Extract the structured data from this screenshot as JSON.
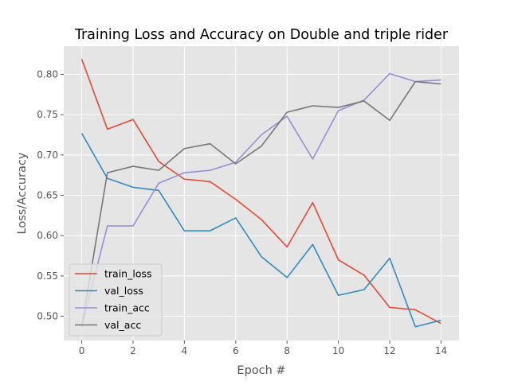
{
  "chart_data": {
    "type": "line",
    "title": "Training Loss and Accuracy on Double and triple rider",
    "xlabel": "Epoch #",
    "ylabel": "Loss/Accuracy",
    "x": [
      0,
      1,
      2,
      3,
      4,
      5,
      6,
      7,
      8,
      9,
      10,
      11,
      12,
      13,
      14
    ],
    "xlim": [
      -0.7,
      14.7
    ],
    "ylim": [
      0.47,
      0.835
    ],
    "xticks": [
      0,
      2,
      4,
      6,
      8,
      10,
      12,
      14
    ],
    "yticks": [
      0.5,
      0.55,
      0.6,
      0.65,
      0.7,
      0.75,
      0.8
    ],
    "xtick_labels": [
      "0",
      "2",
      "4",
      "6",
      "8",
      "10",
      "12",
      "14"
    ],
    "ytick_labels": [
      "0.50",
      "0.55",
      "0.60",
      "0.65",
      "0.70",
      "0.75",
      "0.80"
    ],
    "grid": true,
    "legend_position": "lower-left",
    "background_color": "#e5e5e5",
    "grid_color": "#ffffff",
    "series": [
      {
        "name": "train_loss",
        "color": "#e24a33",
        "values": [
          0.819,
          0.732,
          0.744,
          0.692,
          0.67,
          0.667,
          0.645,
          0.62,
          0.586,
          0.641,
          0.57,
          0.551,
          0.511,
          0.508,
          0.491
        ]
      },
      {
        "name": "val_loss",
        "color": "#348abd",
        "values": [
          0.727,
          0.671,
          0.66,
          0.656,
          0.606,
          0.606,
          0.622,
          0.574,
          0.548,
          0.589,
          0.526,
          0.533,
          0.572,
          0.487,
          0.495
        ]
      },
      {
        "name": "train_acc",
        "color": "#988ed5",
        "values": [
          0.487,
          0.612,
          0.612,
          0.665,
          0.678,
          0.681,
          0.691,
          0.725,
          0.748,
          0.695,
          0.755,
          0.768,
          0.801,
          0.791,
          0.793
        ]
      },
      {
        "name": "val_acc",
        "color": "#777777",
        "values": [
          0.487,
          0.678,
          0.686,
          0.681,
          0.708,
          0.714,
          0.689,
          0.711,
          0.753,
          0.761,
          0.759,
          0.767,
          0.743,
          0.791,
          0.788
        ]
      }
    ]
  }
}
